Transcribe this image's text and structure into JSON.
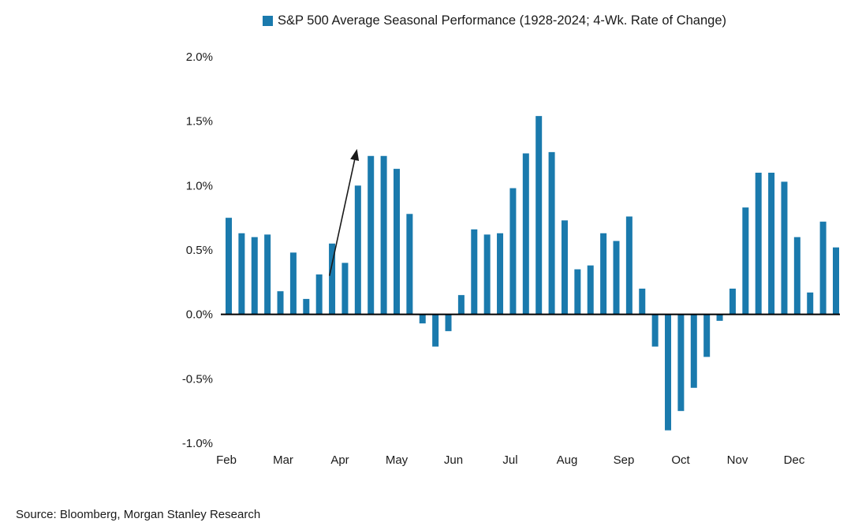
{
  "colors": {
    "bar": "#1a7aad",
    "axis": "#000000",
    "text": "#1a1a1a",
    "background": "#ffffff"
  },
  "legend": {
    "label": "S&P 500 Average Seasonal Performance (1928-2024; 4-Wk. Rate of Change)"
  },
  "source": {
    "text": "Source: Bloomberg, Morgan Stanley Research"
  },
  "chart_data": {
    "type": "bar",
    "title": "S&P 500 Average Seasonal Performance (1928-2024; 4-Wk. Rate of Change)",
    "xlabel": "",
    "ylabel": "",
    "ylim": [
      -1.0,
      2.0
    ],
    "y_tick_values": [
      2.0,
      1.5,
      1.0,
      0.5,
      0.0,
      -0.5,
      -1.0
    ],
    "y_tick_format": "percent_one_decimal",
    "grid": false,
    "legend_position": "top-center",
    "month_labels": [
      "Feb",
      "Mar",
      "Apr",
      "May",
      "Jun",
      "Jul",
      "Aug",
      "Sep",
      "Oct",
      "Nov",
      "Dec"
    ],
    "values": [
      0.75,
      0.63,
      0.6,
      0.62,
      0.18,
      0.48,
      0.12,
      0.31,
      0.55,
      0.4,
      1.0,
      1.23,
      1.23,
      1.13,
      0.78,
      -0.07,
      -0.25,
      -0.13,
      0.15,
      0.66,
      0.62,
      0.63,
      0.98,
      1.25,
      1.54,
      1.26,
      0.73,
      0.35,
      0.38,
      0.63,
      0.57,
      0.76,
      0.2,
      -0.25,
      -0.9,
      -0.75,
      -0.57,
      -0.33,
      -0.05,
      0.2,
      0.83,
      1.1,
      1.1,
      1.03,
      0.6,
      0.17,
      0.72,
      0.52
    ],
    "annotation": {
      "type": "arrow",
      "from_week_index": 7.8,
      "from_value_pct": 0.3,
      "to_week_index": 9.9,
      "to_value_pct": 1.27
    }
  }
}
